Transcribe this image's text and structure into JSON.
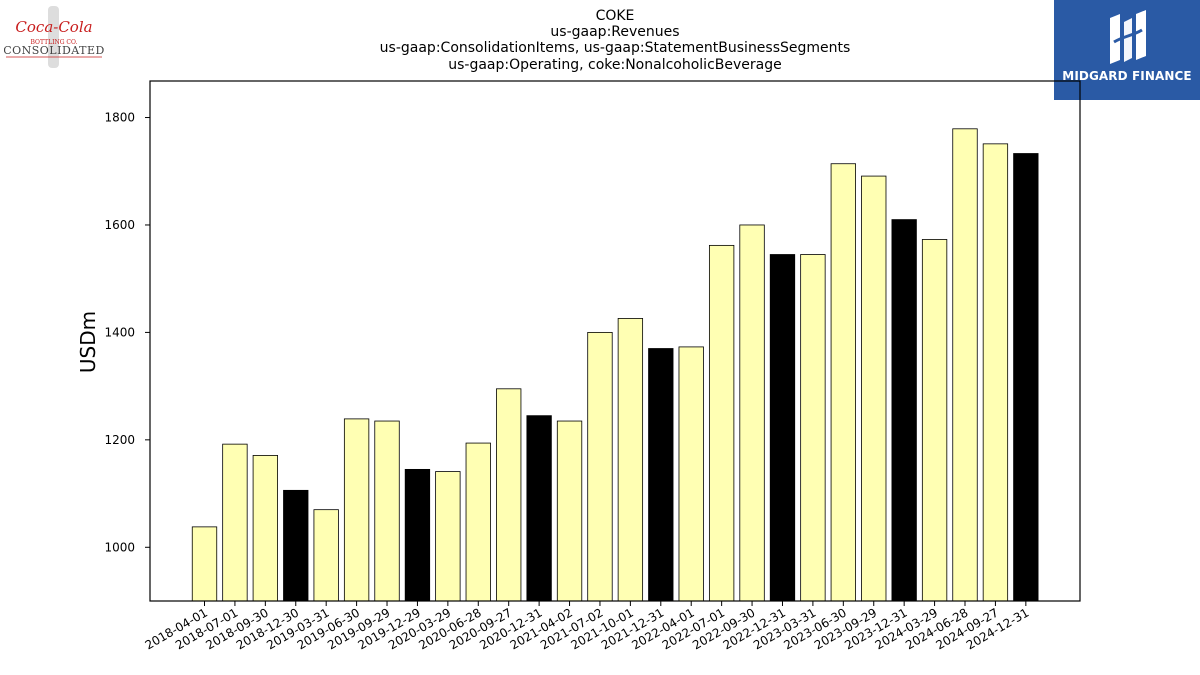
{
  "header": {
    "title_lines": [
      "COKE",
      "us-gaap:Revenues",
      "us-gaap:ConsolidationItems, us-gaap:StatementBusinessSegments",
      "us-gaap:Operating, coke:NonalcoholicBeverage"
    ]
  },
  "logos": {
    "company": {
      "script_text": "Coca-Cola",
      "sub_text": "BOTTLING CO.",
      "name_text": "CONSOLIDATED",
      "color": "#c81e1e"
    },
    "brand": {
      "name": "MIDGARD FINANCE",
      "color": "#2a5aa5"
    }
  },
  "chart_data": {
    "type": "bar",
    "title": "COKE",
    "ylabel": "USDm",
    "xlabel": "",
    "ylim": [
      900,
      1868
    ],
    "yticks": [
      1000,
      1200,
      1400,
      1600,
      1800
    ],
    "grid": false,
    "colors": {
      "quarter": "#ffffb3",
      "year_end": "#000000",
      "edge": "#000000"
    },
    "categories": [
      "2018-04-01",
      "2018-07-01",
      "2018-09-30",
      "2018-12-30",
      "2019-03-31",
      "2019-06-30",
      "2019-09-29",
      "2019-12-29",
      "2020-03-29",
      "2020-06-28",
      "2020-09-27",
      "2020-12-31",
      "2021-04-02",
      "2021-07-02",
      "2021-10-01",
      "2021-12-31",
      "2022-04-01",
      "2022-07-01",
      "2022-09-30",
      "2022-12-31",
      "2023-03-31",
      "2023-06-30",
      "2023-09-29",
      "2023-12-31",
      "2024-03-29",
      "2024-06-28",
      "2024-09-27",
      "2024-12-31"
    ],
    "values": [
      1038,
      1192,
      1171,
      1106,
      1070,
      1239,
      1235,
      1145,
      1141,
      1194,
      1295,
      1245,
      1235,
      1400,
      1426,
      1370,
      1373,
      1562,
      1600,
      1545,
      1545,
      1714,
      1691,
      1610,
      1573,
      1779,
      1751,
      1733
    ],
    "is_year_end": [
      false,
      false,
      false,
      true,
      false,
      false,
      false,
      true,
      false,
      false,
      false,
      true,
      false,
      false,
      false,
      true,
      false,
      false,
      false,
      true,
      false,
      false,
      false,
      true,
      false,
      false,
      false,
      true
    ]
  }
}
